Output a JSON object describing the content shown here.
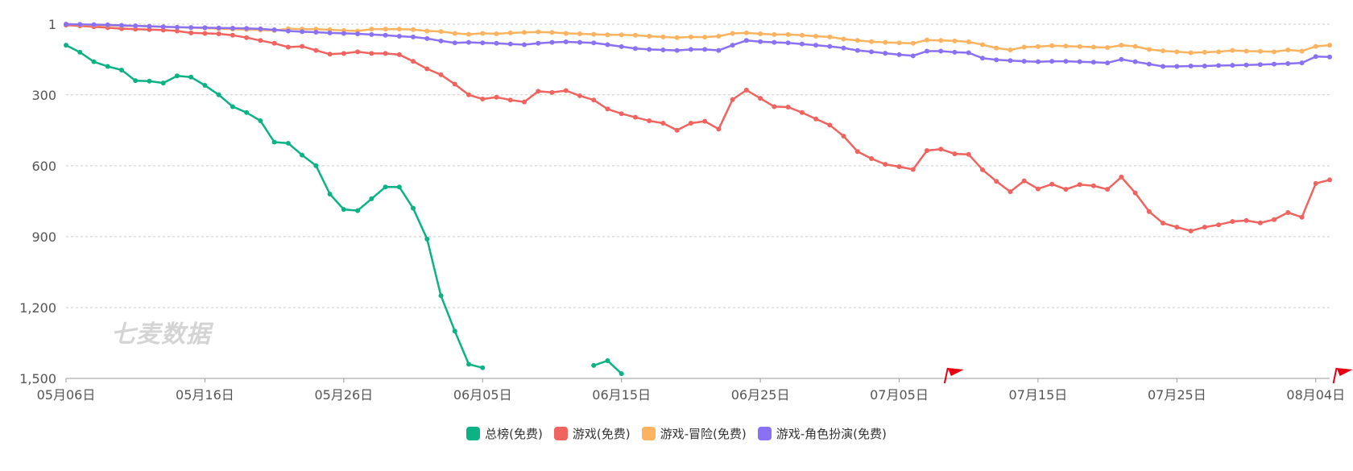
{
  "watermark": "七麦数据",
  "colors": {
    "total": "#0bb384",
    "game": "#f0635e",
    "adventure": "#fbb35f",
    "rpg": "#8a71f4",
    "grid": "#cccccc",
    "axis_text": "#555555",
    "flag": "#e60012"
  },
  "chart_data": {
    "type": "line",
    "y_inverted": true,
    "ylim": [
      1,
      1500
    ],
    "y_ticks": [
      1,
      300,
      600,
      900,
      1200,
      1500
    ],
    "y_tick_labels": [
      "1",
      "300",
      "600",
      "900",
      "1,200",
      "1,500"
    ],
    "x_start": "05-06",
    "x_tick_labels": [
      "05月06日",
      "05月16日",
      "05月26日",
      "06月05日",
      "06月15日",
      "06月25日",
      "07月05日",
      "07月15日",
      "07月25日",
      "08月04日"
    ],
    "x_tick_index": [
      0,
      10,
      20,
      30,
      40,
      50,
      60,
      70,
      80,
      90
    ],
    "flags_at_index": [
      63.5,
      91.5
    ],
    "grid": true,
    "legend": "bottom-center",
    "series": [
      {
        "name": "总榜(免费)",
        "values": [
          90,
          120,
          160,
          180,
          195,
          240,
          242,
          250,
          220,
          225,
          260,
          300,
          350,
          375,
          410,
          500,
          505,
          555,
          600,
          720,
          785,
          790,
          740,
          690,
          690,
          780,
          910,
          1150,
          1300,
          1440,
          1455,
          null,
          null,
          null,
          null,
          null,
          null,
          null,
          1445,
          1425,
          1480
        ]
      },
      {
        "name": "游戏(免费)",
        "values": [
          5,
          8,
          12,
          16,
          20,
          22,
          24,
          26,
          30,
          38,
          40,
          42,
          48,
          58,
          70,
          82,
          98,
          95,
          112,
          128,
          125,
          118,
          125,
          125,
          130,
          158,
          190,
          215,
          255,
          300,
          318,
          310,
          322,
          330,
          285,
          290,
          282,
          304,
          322,
          360,
          380,
          395,
          410,
          420,
          450,
          420,
          412,
          445,
          320,
          280,
          315,
          350,
          352,
          375,
          402,
          428,
          475,
          540,
          570,
          594,
          604,
          616,
          536,
          530,
          550,
          552,
          617,
          666,
          710,
          664,
          698,
          678,
          700,
          680,
          685,
          700,
          648,
          715,
          794,
          843,
          860,
          876,
          860,
          850,
          836,
          832,
          842,
          828,
          798,
          818,
          675,
          660
        ]
      },
      {
        "name": "游戏-冒险(免费)",
        "values": [
          1,
          3,
          5,
          6,
          8,
          9,
          10,
          12,
          14,
          16,
          18,
          20,
          22,
          24,
          26,
          28,
          20,
          22,
          22,
          25,
          28,
          30,
          22,
          22,
          22,
          24,
          30,
          32,
          40,
          44,
          40,
          42,
          38,
          36,
          34,
          36,
          40,
          42,
          44,
          46,
          46,
          48,
          52,
          55,
          58,
          55,
          56,
          52,
          40,
          38,
          42,
          45,
          45,
          48,
          52,
          55,
          64,
          70,
          75,
          78,
          80,
          82,
          68,
          70,
          72,
          76,
          88,
          102,
          110,
          98,
          96,
          92,
          94,
          96,
          98,
          100,
          90,
          95,
          108,
          114,
          118,
          122,
          120,
          118,
          112,
          115,
          116,
          118,
          110,
          115,
          95,
          90
        ]
      },
      {
        "name": "游戏-角色扮演(免费)",
        "values": [
          1,
          2,
          3,
          4,
          6,
          8,
          10,
          12,
          14,
          15,
          16,
          17,
          18,
          19,
          21,
          25,
          30,
          33,
          35,
          38,
          40,
          42,
          45,
          48,
          52,
          55,
          62,
          72,
          80,
          78,
          80,
          82,
          85,
          88,
          82,
          78,
          76,
          78,
          80,
          88,
          96,
          104,
          108,
          110,
          112,
          108,
          108,
          112,
          90,
          70,
          75,
          78,
          80,
          85,
          90,
          95,
          102,
          112,
          118,
          124,
          130,
          135,
          115,
          115,
          120,
          122,
          145,
          152,
          155,
          158,
          160,
          158,
          158,
          160,
          162,
          165,
          150,
          160,
          170,
          180,
          180,
          178,
          178,
          176,
          175,
          174,
          172,
          170,
          168,
          165,
          138,
          140
        ]
      }
    ]
  },
  "legend_labels": [
    "总榜(免费)",
    "游戏(免费)",
    "游戏-冒险(免费)",
    "游戏-角色扮演(免费)"
  ]
}
